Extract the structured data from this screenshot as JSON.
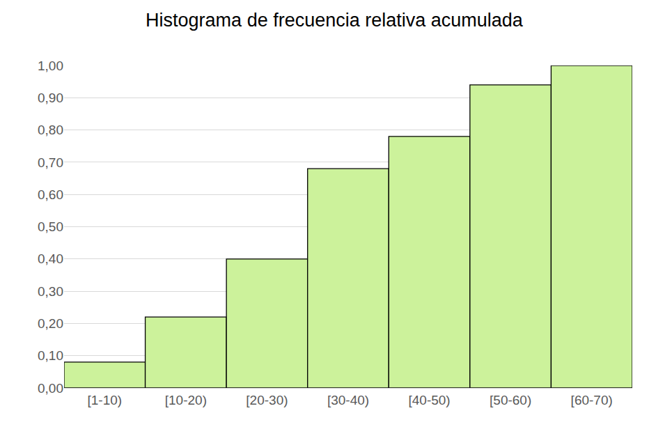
{
  "chart_data": {
    "type": "bar",
    "title": "Histograma de frecuencia relativa acumulada",
    "categories": [
      "[1-10)",
      "[10-20)",
      "[20-30)",
      "[30-40)",
      "[40-50)",
      "[50-60)",
      "[60-70)"
    ],
    "values": [
      0.08,
      0.22,
      0.4,
      0.68,
      0.78,
      0.94,
      1.0
    ],
    "color": "#ccf29b",
    "ylim": [
      0,
      1
    ],
    "yticks": [
      {
        "value": 0,
        "label": "0,00"
      },
      {
        "value": 0.1,
        "label": "0,10"
      },
      {
        "value": 0.2,
        "label": "0,20"
      },
      {
        "value": 0.3,
        "label": "0,30"
      },
      {
        "value": 0.4,
        "label": "0,40"
      },
      {
        "value": 0.5,
        "label": "0,50"
      },
      {
        "value": 0.6,
        "label": "0,60"
      },
      {
        "value": 0.7,
        "label": "0,70"
      },
      {
        "value": 0.8,
        "label": "0,80"
      },
      {
        "value": 0.9,
        "label": "0,90"
      },
      {
        "value": 1,
        "label": "1,00"
      }
    ],
    "grid": true
  }
}
